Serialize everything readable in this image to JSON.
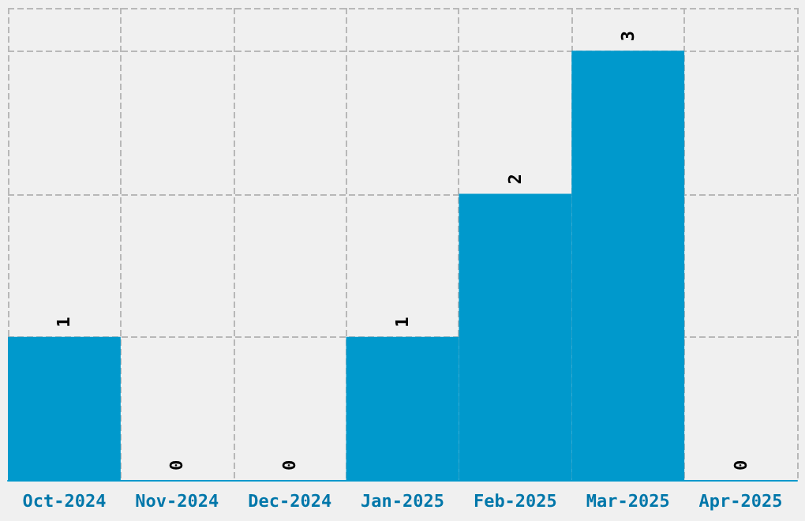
{
  "chart_data": {
    "type": "bar",
    "categories": [
      "Oct-2024",
      "Nov-2024",
      "Dec-2024",
      "Jan-2025",
      "Feb-2025",
      "Mar-2025",
      "Apr-2025"
    ],
    "values": [
      1,
      0,
      0,
      1,
      2,
      3,
      0
    ],
    "color": "#0099cc",
    "data_labels": true,
    "grid": true,
    "tick_labels": "x"
  }
}
